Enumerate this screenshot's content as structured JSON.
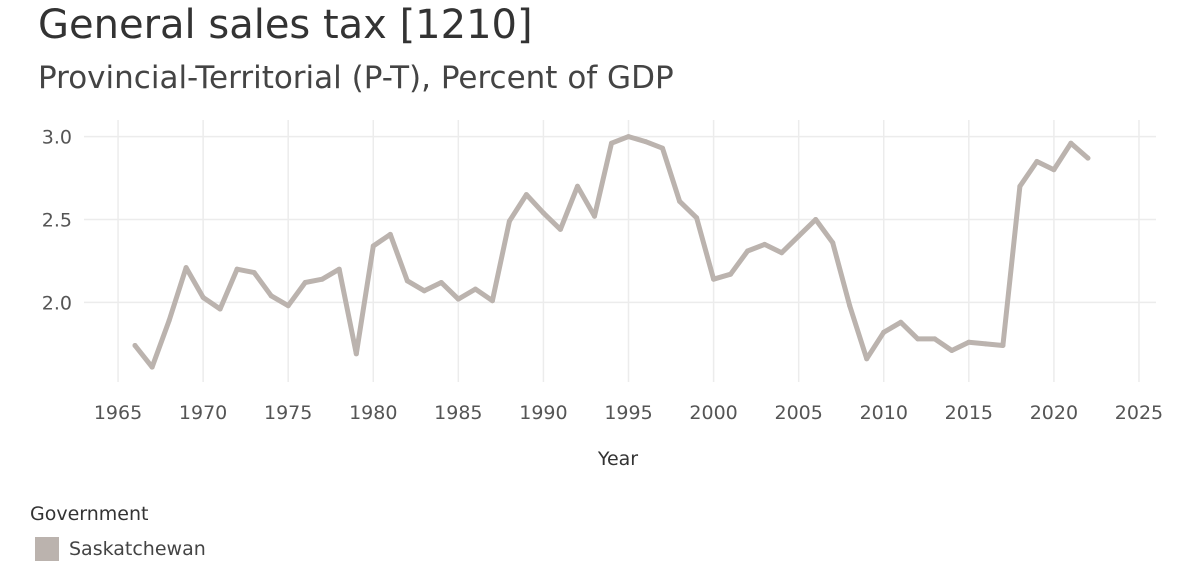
{
  "chart_data": {
    "type": "line",
    "title": "General sales tax [1210]",
    "subtitle": "Provincial-Territorial (P-T), Percent of GDP",
    "xlabel": "Year",
    "ylabel": "",
    "xlim": [
      1963,
      2026
    ],
    "ylim": [
      1.52,
      3.1
    ],
    "x_ticks": [
      1965,
      1970,
      1975,
      1980,
      1985,
      1990,
      1995,
      2000,
      2005,
      2010,
      2015,
      2020,
      2025
    ],
    "y_ticks": [
      2.0,
      2.5,
      3.0
    ],
    "y_tick_labels": [
      "2.0",
      "2.5",
      "3.0"
    ],
    "legend_title": "Government",
    "series": [
      {
        "name": "Saskatchewan",
        "color": "#bbb3ae",
        "x": [
          1966,
          1967,
          1968,
          1969,
          1970,
          1971,
          1972,
          1973,
          1974,
          1975,
          1976,
          1977,
          1978,
          1979,
          1980,
          1981,
          1982,
          1983,
          1984,
          1985,
          1986,
          1987,
          1988,
          1989,
          1990,
          1991,
          1992,
          1993,
          1994,
          1995,
          1996,
          1997,
          1998,
          1999,
          2000,
          2001,
          2002,
          2003,
          2004,
          2005,
          2006,
          2007,
          2008,
          2009,
          2010,
          2011,
          2012,
          2013,
          2014,
          2015,
          2016,
          2017,
          2018,
          2019,
          2020,
          2021,
          2022
        ],
        "values": [
          1.74,
          1.61,
          1.89,
          2.21,
          2.03,
          1.96,
          2.2,
          2.18,
          2.04,
          1.98,
          2.12,
          2.14,
          2.2,
          1.69,
          2.34,
          2.41,
          2.13,
          2.07,
          2.12,
          2.02,
          2.08,
          2.01,
          2.49,
          2.65,
          2.54,
          2.44,
          2.7,
          2.52,
          2.96,
          3.0,
          2.97,
          2.93,
          2.61,
          2.51,
          2.14,
          2.17,
          2.31,
          2.35,
          2.3,
          2.4,
          2.5,
          2.36,
          1.98,
          1.66,
          1.82,
          1.88,
          1.78,
          1.78,
          1.71,
          1.76,
          1.75,
          1.74,
          2.7,
          2.85,
          2.8,
          2.96,
          2.87
        ]
      }
    ]
  }
}
